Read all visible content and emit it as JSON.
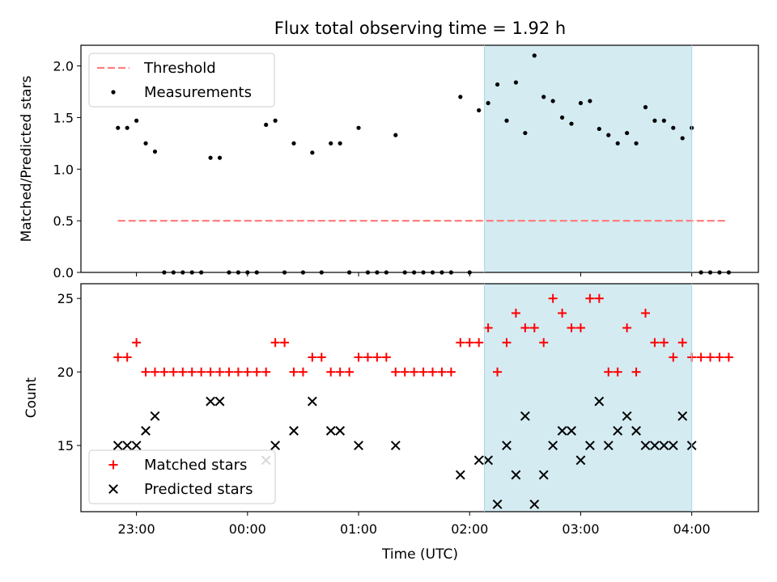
{
  "chart_data": {
    "title": "Flux total observing time = 1.92 h",
    "xlabel": "Time (UTC)",
    "x_ticks": [
      "23:00",
      "00:00",
      "01:00",
      "02:00",
      "03:00",
      "04:00"
    ],
    "x_range": [
      "22:30",
      "04:36"
    ],
    "highlight_window": {
      "start": "02:08",
      "end": "04:00",
      "color": "#d4ebf2"
    },
    "panels": [
      {
        "type": "scatter",
        "ylabel": "Matched/Predicted stars",
        "ylim": [
          0,
          2.2
        ],
        "y_ticks": [
          "0.0",
          "0.5",
          "1.0",
          "1.5",
          "2.0"
        ],
        "legend": {
          "placement": "upper-left",
          "entries": [
            "Threshold",
            "Measurements"
          ]
        },
        "series": [
          {
            "name": "Threshold",
            "kind": "dashed-line",
            "color": "#ff7f7f",
            "x": [
              "22:50",
              "04:18"
            ],
            "y": [
              0.5,
              0.5
            ]
          },
          {
            "name": "Measurements",
            "kind": "dot",
            "color": "#000000",
            "x": [
              "22:50",
              "22:55",
              "23:00",
              "23:05",
              "23:10",
              "23:15",
              "23:20",
              "23:25",
              "23:30",
              "23:35",
              "23:40",
              "23:45",
              "23:50",
              "23:55",
              "00:00",
              "00:05",
              "00:10",
              "00:15",
              "00:20",
              "00:25",
              "00:30",
              "00:35",
              "00:40",
              "00:45",
              "00:50",
              "00:55",
              "01:00",
              "01:05",
              "01:10",
              "01:15",
              "01:20",
              "01:25",
              "01:30",
              "01:35",
              "01:40",
              "01:45",
              "01:50",
              "01:55",
              "02:00",
              "02:05",
              "02:10",
              "02:15",
              "02:20",
              "02:25",
              "02:30",
              "02:35",
              "02:40",
              "02:45",
              "02:50",
              "02:55",
              "03:00",
              "03:05",
              "03:10",
              "03:15",
              "03:20",
              "03:25",
              "03:30",
              "03:35",
              "03:40",
              "03:45",
              "03:50",
              "03:55",
              "04:00",
              "04:05",
              "04:10",
              "04:15",
              "04:20"
            ],
            "y": [
              1.4,
              1.4,
              1.47,
              1.25,
              1.17,
              0,
              0,
              0,
              0,
              0,
              1.11,
              1.11,
              0,
              0,
              0,
              0,
              1.43,
              1.47,
              0,
              1.25,
              0,
              1.16,
              0,
              1.25,
              1.25,
              0,
              1.4,
              0,
              0,
              0,
              1.33,
              0,
              0,
              0,
              0,
              0,
              0,
              1.7,
              0,
              1.57,
              1.64,
              1.82,
              1.47,
              1.84,
              1.35,
              2.1,
              1.7,
              1.66,
              1.5,
              1.44,
              1.64,
              1.66,
              1.39,
              1.33,
              1.25,
              1.35,
              1.25,
              1.6,
              1.47,
              1.47,
              1.4,
              1.3,
              1.4,
              0,
              0,
              0,
              0
            ]
          }
        ]
      },
      {
        "type": "scatter",
        "ylabel": "Count",
        "ylim": [
          10.5,
          26
        ],
        "y_ticks": [
          "15",
          "20",
          "25"
        ],
        "legend": {
          "placement": "lower-left",
          "entries": [
            "Matched stars",
            "Predicted stars"
          ]
        },
        "series": [
          {
            "name": "Matched stars",
            "kind": "plus",
            "color": "#ff0000",
            "x": [
              "22:50",
              "22:55",
              "23:00",
              "23:05",
              "23:10",
              "23:15",
              "23:20",
              "23:25",
              "23:30",
              "23:35",
              "23:40",
              "23:45",
              "23:50",
              "23:55",
              "00:00",
              "00:05",
              "00:10",
              "00:15",
              "00:20",
              "00:25",
              "00:30",
              "00:35",
              "00:40",
              "00:45",
              "00:50",
              "00:55",
              "01:00",
              "01:05",
              "01:10",
              "01:15",
              "01:20",
              "01:25",
              "01:30",
              "01:35",
              "01:40",
              "01:45",
              "01:50",
              "01:55",
              "02:00",
              "02:05",
              "02:10",
              "02:15",
              "02:20",
              "02:25",
              "02:30",
              "02:35",
              "02:40",
              "02:45",
              "02:50",
              "02:55",
              "03:00",
              "03:05",
              "03:10",
              "03:15",
              "03:20",
              "03:25",
              "03:30",
              "03:35",
              "03:40",
              "03:45",
              "03:50",
              "03:55",
              "04:00",
              "04:05",
              "04:10",
              "04:15",
              "04:20"
            ],
            "y": [
              21,
              21,
              22,
              20,
              20,
              20,
              20,
              20,
              20,
              20,
              20,
              20,
              20,
              20,
              20,
              20,
              20,
              22,
              22,
              20,
              20,
              21,
              21,
              20,
              20,
              20,
              21,
              21,
              21,
              21,
              20,
              20,
              20,
              20,
              20,
              20,
              20,
              22,
              22,
              22,
              23,
              20,
              22,
              24,
              23,
              23,
              22,
              25,
              24,
              23,
              23,
              25,
              25,
              20,
              20,
              23,
              20,
              24,
              22,
              22,
              21,
              22,
              21,
              21,
              21,
              21,
              21
            ]
          },
          {
            "name": "Predicted stars",
            "kind": "x",
            "color": "#000000",
            "x": [
              "22:50",
              "22:55",
              "23:00",
              "23:05",
              "23:10",
              "23:40",
              "23:45",
              "00:10",
              "00:15",
              "00:25",
              "00:35",
              "00:45",
              "00:50",
              "01:00",
              "01:20",
              "01:55",
              "02:05",
              "02:10",
              "02:15",
              "02:20",
              "02:25",
              "02:30",
              "02:35",
              "02:40",
              "02:45",
              "02:50",
              "02:55",
              "03:00",
              "03:05",
              "03:10",
              "03:15",
              "03:20",
              "03:25",
              "03:30",
              "03:35",
              "03:40",
              "03:45",
              "03:50",
              "03:55",
              "04:00"
            ],
            "y": [
              15,
              15,
              15,
              16,
              17,
              18,
              18,
              14,
              15,
              16,
              18,
              16,
              16,
              15,
              15,
              13,
              14,
              14,
              11,
              15,
              13,
              17,
              11,
              13,
              15,
              16,
              16,
              14,
              15,
              18,
              15,
              16,
              17,
              16,
              15,
              15,
              15,
              15,
              17,
              15
            ]
          }
        ]
      }
    ]
  }
}
